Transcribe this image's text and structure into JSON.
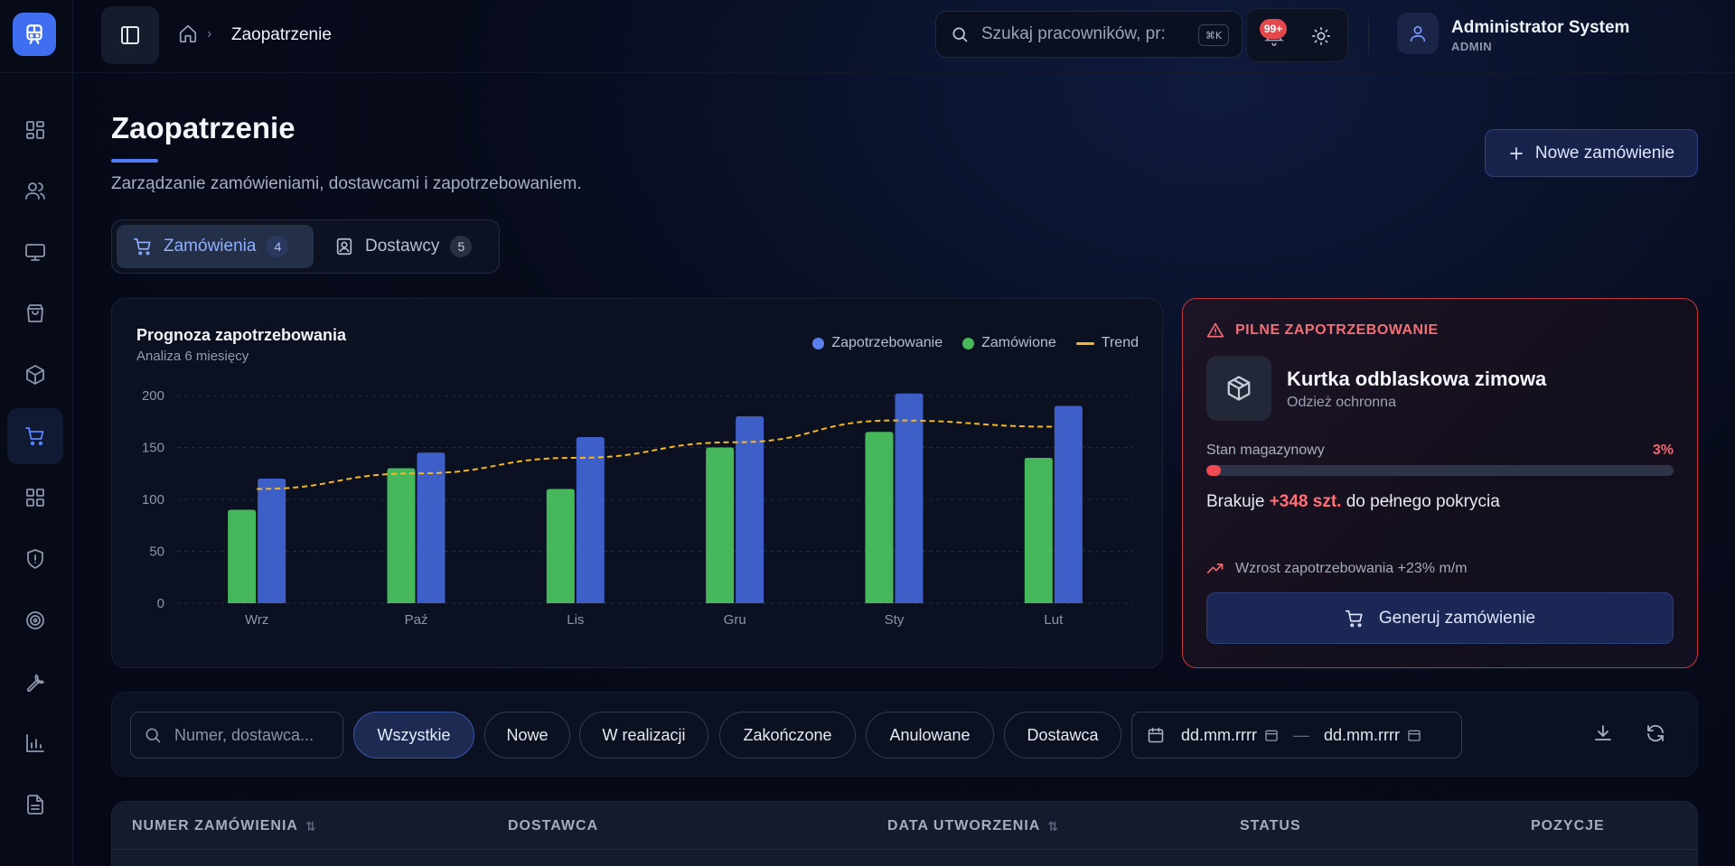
{
  "topbar": {
    "breadcrumb_current": "Zaopatrzenie",
    "search_placeholder": "Szukaj pracowników, pr:",
    "search_shortcut": "⌘K",
    "notifications_count": "99+",
    "user_name": "Administrator System",
    "user_role": "ADMIN"
  },
  "sidebar": {
    "items": [
      {
        "icon": "dashboard-icon"
      },
      {
        "icon": "users-icon"
      },
      {
        "icon": "monitor-icon"
      },
      {
        "icon": "bag-icon"
      },
      {
        "icon": "box-icon"
      },
      {
        "icon": "cart-icon",
        "active": true
      },
      {
        "icon": "grid-icon"
      },
      {
        "icon": "shield-alert-icon"
      },
      {
        "icon": "target-icon"
      },
      {
        "icon": "wrench-icon"
      },
      {
        "icon": "bar-chart-icon"
      },
      {
        "icon": "document-icon"
      }
    ]
  },
  "page": {
    "title": "Zaopatrzenie",
    "subtitle": "Zarządzanie zamówieniami, dostawcami i zapotrzebowaniem.",
    "new_order_label": "Nowe zamówienie"
  },
  "tabs": [
    {
      "label": "Zamówienia",
      "count": "4",
      "active": true
    },
    {
      "label": "Dostawcy",
      "count": "5",
      "active": false
    }
  ],
  "chart_card": {
    "title": "Prognoza zapotrzebowania",
    "subtitle": "Analiza 6 miesięcy"
  },
  "chart_data": {
    "type": "bar",
    "categories": [
      "Wrz",
      "Paź",
      "Lis",
      "Gru",
      "Sty",
      "Lut"
    ],
    "ylim": [
      0,
      200
    ],
    "yticks": [
      0,
      50,
      100,
      150,
      200
    ],
    "series": [
      {
        "name": "Zapotrzebowanie",
        "type": "bar",
        "color": "#3f5fc8",
        "values": [
          120,
          145,
          160,
          180,
          202,
          190
        ]
      },
      {
        "name": "Zamówione",
        "type": "bar",
        "color": "#46b75a",
        "values": [
          90,
          130,
          110,
          150,
          165,
          140
        ]
      },
      {
        "name": "Trend",
        "type": "line",
        "color": "#f5b720",
        "values": [
          110,
          125,
          140,
          155,
          176,
          170
        ]
      }
    ],
    "grid": true,
    "legend": "top-right"
  },
  "urgent": {
    "heading": "PILNE ZAPOTRZEBOWANIE",
    "product_name": "Kurtka odblaskowa zimowa",
    "product_category": "Odzież ochronna",
    "stock_label": "Stan magazynowy",
    "stock_percent_text": "3%",
    "stock_fraction": 0.03,
    "shortage_prefix": "Brakuje",
    "shortage_value": "+348 szt.",
    "shortage_suffix": "do pełnego pokrycia",
    "growth_text": "Wzrost zapotrzebowania +23% m/m",
    "generate_label": "Generuj zamówienie"
  },
  "filters": {
    "search_placeholder": "Numer, dostawca...",
    "chips": [
      "Wszystkie",
      "Nowe",
      "W realizacji",
      "Zakończone",
      "Anulowane",
      "Dostawca"
    ],
    "active_chip": "Wszystkie",
    "date_from": "dd.mm.rrrr",
    "date_to": "dd.mm.rrrr",
    "date_separator": "—"
  },
  "table": {
    "columns": [
      "NUMER ZAMÓWIENIA",
      "DOSTAWCA",
      "DATA UTWORZENIA",
      "STATUS",
      "POZYCJE"
    ]
  },
  "colors": {
    "accent": "#4d7cf6",
    "danger": "#e5484d",
    "success": "#46b75a",
    "trend": "#f5b720"
  }
}
